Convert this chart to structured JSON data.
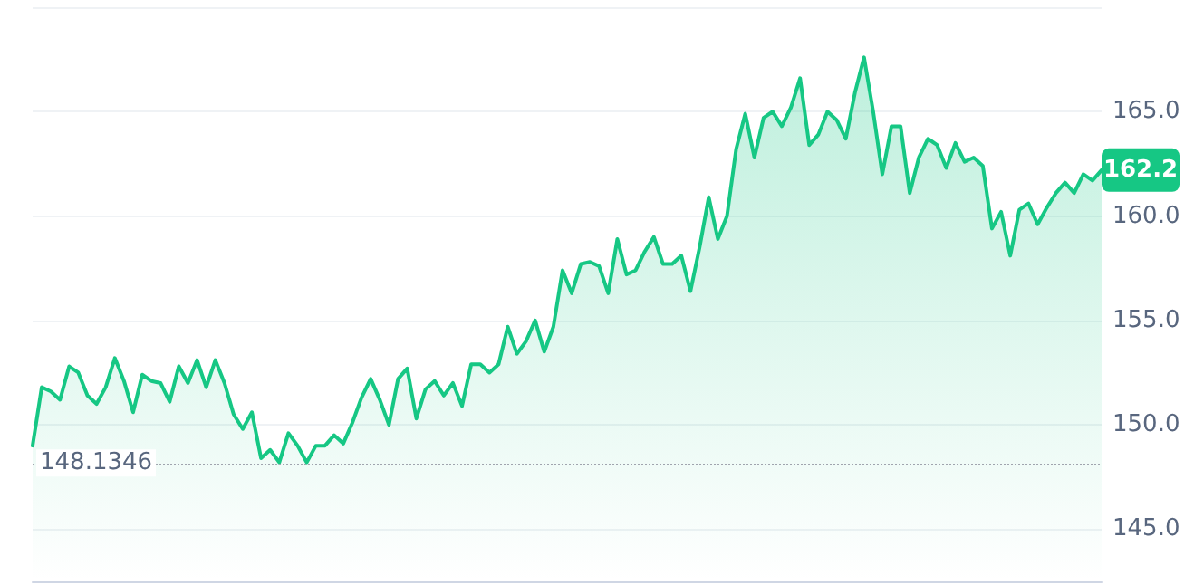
{
  "chart_data": {
    "type": "area",
    "color": "#16c784",
    "categories": [
      null,
      null,
      null,
      null,
      null,
      null,
      null,
      null,
      null,
      null,
      null,
      null,
      null,
      null,
      null,
      null,
      null,
      null,
      null,
      null,
      null,
      null,
      null,
      null,
      null,
      null,
      null,
      null,
      null,
      null,
      null,
      null,
      null,
      null,
      null,
      null,
      null,
      null,
      null,
      null,
      null,
      null,
      null,
      null,
      null,
      null,
      null,
      null,
      null,
      null,
      null,
      null,
      null,
      null,
      null,
      null,
      null,
      null,
      null,
      null,
      null,
      null,
      null,
      null,
      null,
      null,
      null,
      null,
      null,
      null,
      null,
      null,
      null,
      null,
      null,
      null,
      null,
      null,
      null,
      null,
      null,
      null,
      null,
      null,
      null,
      null,
      null,
      null,
      null,
      null,
      null,
      null,
      null,
      null,
      null,
      null,
      null,
      null,
      null,
      null,
      null,
      null,
      null,
      null,
      null,
      null,
      null,
      null,
      null,
      null,
      null,
      null,
      null,
      null,
      null,
      null,
      null,
      null
    ],
    "values": [
      149.0,
      151.8,
      151.6,
      151.2,
      152.8,
      152.5,
      151.4,
      151.0,
      151.8,
      153.2,
      152.1,
      150.6,
      152.4,
      152.1,
      152.0,
      151.1,
      152.8,
      152.0,
      153.1,
      151.8,
      153.1,
      152.0,
      150.5,
      149.8,
      150.6,
      148.4,
      148.8,
      148.2,
      149.6,
      149.0,
      148.2,
      149.0,
      149.0,
      149.5,
      149.1,
      150.1,
      151.3,
      152.2,
      151.2,
      150.0,
      152.2,
      152.7,
      150.3,
      151.7,
      152.1,
      151.4,
      152.0,
      150.9,
      152.9,
      152.9,
      152.5,
      152.9,
      154.7,
      153.4,
      154.0,
      155.0,
      153.5,
      154.7,
      157.4,
      156.3,
      157.7,
      157.8,
      157.6,
      156.3,
      158.9,
      157.2,
      157.4,
      158.3,
      159.0,
      157.7,
      157.7,
      158.1,
      156.4,
      158.5,
      160.9,
      158.9,
      160.0,
      163.2,
      164.9,
      162.8,
      164.7,
      165.0,
      164.3,
      165.2,
      166.6,
      163.4,
      163.9,
      165.0,
      164.6,
      163.7,
      165.9,
      167.6,
      165.0,
      162.0,
      164.3,
      164.3,
      161.1,
      162.8,
      163.7,
      163.4,
      162.3,
      163.5,
      162.6,
      162.8,
      162.4,
      159.4,
      160.2,
      158.1,
      160.3,
      160.6,
      159.6,
      160.4,
      161.1,
      161.6,
      161.1,
      162.0,
      161.7,
      162.2
    ],
    "ylim": [
      142.5,
      170
    ],
    "yticks": [
      {
        "value": 145,
        "label": "145.0"
      },
      {
        "value": 150,
        "label": "150.0"
      },
      {
        "value": 155,
        "label": "155.0"
      },
      {
        "value": 160,
        "label": "160.0"
      },
      {
        "value": 165,
        "label": "165.0"
      },
      {
        "value": 170,
        "label": null
      }
    ],
    "grid": "y",
    "tick_labels": "y",
    "line_style": "solid",
    "ref_lines": [
      {
        "axis": "y",
        "value": 148.1346,
        "label": "148.1346",
        "color": "#a0a4ae",
        "line_style": "dotted"
      }
    ],
    "annotations": [
      {
        "text": "162.2",
        "y": 162.2
      }
    ]
  }
}
